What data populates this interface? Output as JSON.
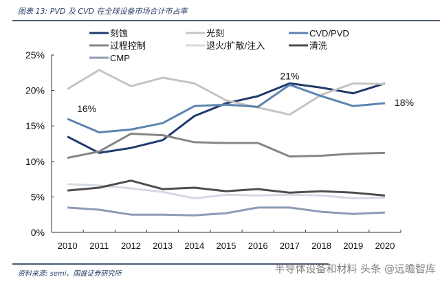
{
  "header": {
    "title": "图表 13: PVD 及 CVD 在全球设备市场合计市占率"
  },
  "footer": {
    "source": "资料来源: semi、国盛证券研究所",
    "watermark": "半导体设备和材料 头条 @远瞻智库"
  },
  "chart_data": {
    "type": "line",
    "title": "",
    "xlabel": "",
    "ylabel": "",
    "categories": [
      "2010",
      "2011",
      "2012",
      "2013",
      "2014",
      "2015",
      "2016",
      "2017",
      "2018",
      "2019",
      "2020"
    ],
    "ylim": [
      0,
      25
    ],
    "yticks": [
      0,
      5,
      10,
      15,
      20,
      25
    ],
    "ytick_labels": [
      "0%",
      "5%",
      "10%",
      "15%",
      "20%",
      "25%"
    ],
    "grid": false,
    "legend_placement": "top",
    "series": [
      {
        "name": "刻蚀",
        "color": "#1f3a6b",
        "values": [
          13.5,
          11.2,
          11.9,
          13.0,
          16.4,
          18.2,
          19.2,
          21.0,
          20.4,
          19.6,
          21.0
        ]
      },
      {
        "name": "光刻",
        "color": "#c4c4c4",
        "values": [
          20.2,
          22.9,
          20.6,
          21.8,
          21.0,
          18.6,
          17.6,
          16.6,
          19.4,
          21.0,
          20.9
        ]
      },
      {
        "name": "CVD/PVD",
        "color": "#5b84b1",
        "values": [
          16.0,
          14.1,
          14.5,
          15.4,
          17.8,
          18.0,
          17.7,
          20.8,
          19.2,
          17.8,
          18.2
        ]
      },
      {
        "name": "过程控制",
        "color": "#858585",
        "values": [
          10.5,
          11.4,
          13.9,
          13.7,
          12.7,
          12.6,
          12.6,
          10.7,
          10.8,
          11.1,
          11.2
        ]
      },
      {
        "name": "退火/扩散/注入",
        "color": "#d3d9e2",
        "values": [
          6.8,
          6.6,
          6.2,
          5.7,
          4.8,
          5.3,
          5.2,
          5.3,
          5.2,
          4.8,
          4.9
        ]
      },
      {
        "name": "清洗",
        "color": "#4d4d4d",
        "values": [
          5.9,
          6.3,
          7.3,
          6.1,
          6.3,
          5.8,
          6.1,
          5.6,
          5.8,
          5.6,
          5.2
        ]
      },
      {
        "name": "CMP",
        "color": "#8e9bb5",
        "values": [
          3.5,
          3.2,
          2.5,
          2.5,
          2.4,
          2.7,
          3.5,
          3.5,
          2.9,
          2.6,
          2.8
        ]
      }
    ],
    "annotations": [
      {
        "text": "16%",
        "series": "CVD/PVD",
        "x": "2010"
      },
      {
        "text": "21%",
        "series": "CVD/PVD",
        "x": "2017"
      },
      {
        "text": "18%",
        "series": "CVD/PVD",
        "x": "2020"
      }
    ]
  }
}
